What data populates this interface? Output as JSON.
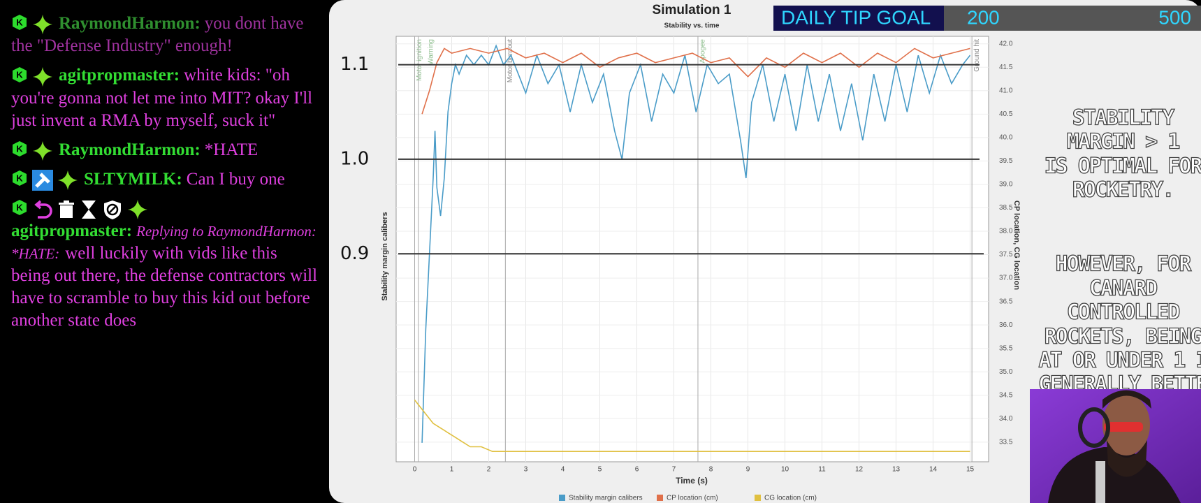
{
  "chat": {
    "messages": [
      {
        "username": "RaymondHarmon:",
        "text": "you dont have the \"Defense Industry\" enough!"
      },
      {
        "username": "agitpropmaster:",
        "text": "white kids: \"oh you're gonna not let me into MIT? okay I'll just invent a RMA by myself, suck it\""
      },
      {
        "username": "RaymondHarmon:",
        "text": "*HATE"
      },
      {
        "username": "SLTYMILK:",
        "text": "Can I buy one"
      },
      {
        "username": "agitpropmaster:",
        "reply": "Replying to RaymondHarmon: *HATE:",
        "text": "well luckily with vids like this being out there, the defense contractors will have to scramble to buy this kid out before another state does"
      }
    ]
  },
  "tip_goal": {
    "label": "DAILY TIP GOAL",
    "current": 200,
    "target": 500
  },
  "overlay": {
    "lines": [
      "STABILITY",
      "MARGIN > 1",
      "IS OPTIMAL FOR",
      "ROCKETRY.",
      "HOWEVER, FOR",
      "CANARD",
      "CONTROLLED",
      "ROCKETS, BEING",
      "AT OR UNDER 1 I",
      "GENERALLY BETTE"
    ]
  },
  "chart": {
    "type": "line",
    "title": "Simulation 1",
    "subtitle": "Stability vs. time",
    "x_label": "Time (s)",
    "y_label": "Stability margin calibers",
    "y2_label": "CP location, CG location",
    "xlim": [
      -0.5,
      15.5
    ],
    "xticks": [
      0,
      1,
      2,
      3,
      4,
      5,
      6,
      7,
      8,
      9,
      10,
      11,
      12,
      13,
      14,
      15
    ],
    "ylim": [
      0.68,
      1.13
    ],
    "yticks": [
      0.9,
      {
        "value": 1.0,
        "label": "1.0"
      },
      1.1
    ],
    "y2lim": [
      33.08,
      42.16
    ],
    "y2ticks": [
      33.5,
      {
        "value": 34.0,
        "label": "34.0"
      },
      34.5,
      {
        "value": 35.0,
        "label": "35.0"
      },
      35.5,
      {
        "value": 36.0,
        "label": "36.0"
      },
      36.5,
      {
        "value": 37.0,
        "label": "37.0"
      },
      37.5,
      {
        "value": 38.0,
        "label": "38.0"
      },
      38.5,
      {
        "value": 39.0,
        "label": "39.0"
      },
      39.5,
      {
        "value": 40.0,
        "label": "40.0"
      },
      40.5,
      {
        "value": 41.0,
        "label": "41.0"
      },
      41.5,
      {
        "value": 42.0,
        "label": "42.0"
      }
    ],
    "grid": true,
    "events": [
      {
        "label": "Motor ignition",
        "x": 0.0
      },
      {
        "label": "Warning",
        "x": 0.1
      },
      {
        "label": "Motor burnout",
        "x": 2.45
      },
      {
        "label": "Apogee",
        "x": 7.65
      },
      {
        "label": "Ground hit",
        "x": 15.05
      }
    ],
    "series": [
      {
        "name": "Stability margin calibers",
        "color": "#4a9cc8",
        "x": [
          0.2,
          0.3,
          0.4,
          0.5,
          0.55,
          0.6,
          0.7,
          0.8,
          0.9,
          1.0,
          1.1,
          1.2,
          1.4,
          1.6,
          1.8,
          2.0,
          2.2,
          2.4,
          2.6,
          2.8,
          3.0,
          3.3,
          3.6,
          3.9,
          4.2,
          4.5,
          4.8,
          5.1,
          5.4,
          5.6,
          5.8,
          6.1,
          6.4,
          6.7,
          7.0,
          7.3,
          7.6,
          7.9,
          8.2,
          8.5,
          8.8,
          8.95,
          9.1,
          9.4,
          9.7,
          10.0,
          10.3,
          10.6,
          10.9,
          11.2,
          11.5,
          11.8,
          12.1,
          12.4,
          12.7,
          13.0,
          13.3,
          13.6,
          13.9,
          14.2,
          14.5,
          14.8,
          15.0
        ],
        "values": [
          0.7,
          0.82,
          0.9,
          0.98,
          1.03,
          0.97,
          0.94,
          0.98,
          1.05,
          1.08,
          1.1,
          1.09,
          1.11,
          1.1,
          1.11,
          1.1,
          1.12,
          1.1,
          1.11,
          1.09,
          1.07,
          1.11,
          1.08,
          1.1,
          1.05,
          1.1,
          1.06,
          1.09,
          1.03,
          1.0,
          1.07,
          1.1,
          1.04,
          1.09,
          1.07,
          1.11,
          1.05,
          1.1,
          1.08,
          1.09,
          1.02,
          0.98,
          1.06,
          1.1,
          1.04,
          1.09,
          1.03,
          1.1,
          1.04,
          1.09,
          1.03,
          1.08,
          1.02,
          1.09,
          1.04,
          1.1,
          1.05,
          1.11,
          1.07,
          1.11,
          1.08,
          1.1,
          1.11
        ]
      },
      {
        "name": "CP location (cm)",
        "color": "#e0704a",
        "axis": "y2",
        "x": [
          0.2,
          0.4,
          0.6,
          0.8,
          1.0,
          1.5,
          2.0,
          2.5,
          3.0,
          3.5,
          4.0,
          4.5,
          5.0,
          5.5,
          6.0,
          6.5,
          7.0,
          7.5,
          8.0,
          8.5,
          9.0,
          9.5,
          10.0,
          10.5,
          11.0,
          11.5,
          12.0,
          12.5,
          13.0,
          13.5,
          14.0,
          14.5,
          15.0
        ],
        "values": [
          40.5,
          41.0,
          41.6,
          41.9,
          41.8,
          41.9,
          41.8,
          41.9,
          41.7,
          41.8,
          41.6,
          41.8,
          41.5,
          41.7,
          41.8,
          41.6,
          41.7,
          41.8,
          41.6,
          41.7,
          41.3,
          41.7,
          41.5,
          41.8,
          41.6,
          41.8,
          41.5,
          41.8,
          41.6,
          41.9,
          41.7,
          41.8,
          41.9
        ]
      },
      {
        "name": "CG location (cm)",
        "color": "#e0c040",
        "axis": "y2",
        "x": [
          0.0,
          0.1,
          0.3,
          0.5,
          0.7,
          0.9,
          1.1,
          1.3,
          1.5,
          1.8,
          2.1,
          15.0
        ],
        "values": [
          34.4,
          34.3,
          34.1,
          33.9,
          33.8,
          33.7,
          33.6,
          33.5,
          33.4,
          33.4,
          33.3,
          33.3
        ]
      }
    ]
  }
}
